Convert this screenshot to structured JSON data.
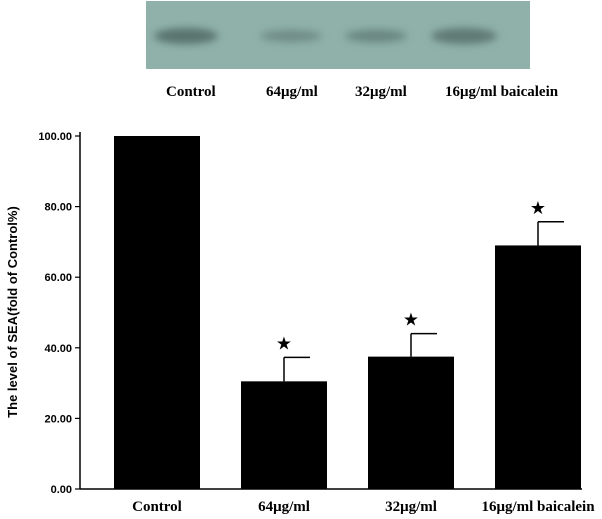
{
  "blot": {
    "labels": [
      "Control",
      "64μg/ml",
      "32μg/ml",
      "16μg/ml baicalein"
    ],
    "background_color": "#8fb1a9",
    "band_color": "#55706a"
  },
  "chart_data": {
    "type": "bar",
    "categories": [
      "Control",
      "64μg/ml",
      "32μg/ml",
      "16μg/ml baicalein"
    ],
    "values": [
      100,
      30.5,
      37.5,
      69
    ],
    "error_upper": [
      0,
      6.8,
      6.5,
      6.7
    ],
    "significance": [
      "",
      "★",
      "★",
      "★"
    ],
    "ylabel": "The level of SEA(fold of Control%)",
    "yticks": [
      "0.00",
      "20.00",
      "40.00",
      "60.00",
      "80.00",
      "100.00"
    ],
    "ylim": [
      0,
      100
    ],
    "bar_color": "#000000",
    "grid": false
  }
}
